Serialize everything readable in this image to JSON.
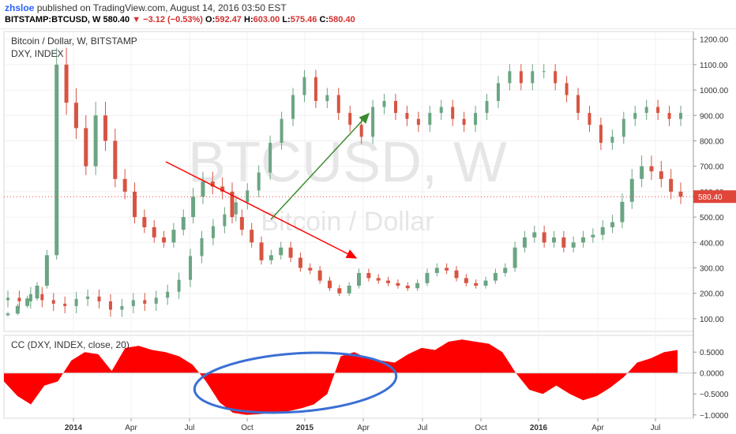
{
  "header": {
    "user": "zhsloe",
    "published_text": "published on TradingView.com, August 14, 2016 03:50 EST",
    "symbol": "BITSTAMP:BTCUSD, W",
    "last": "580.40",
    "change": "−3.12 (−0.53%)",
    "open_label": "O:",
    "open": "592.47",
    "high_label": "H:",
    "high": "603.00",
    "low_label": "L:",
    "low": "575.46",
    "close_label": "C:",
    "close": "580.40"
  },
  "price_pane": {
    "legend_main": "Bitcoin / Dollar, W, BITSTAMP",
    "legend_dxy": "DXY, INDEX",
    "watermark_big": "BTCUSD, W",
    "watermark_small": "Bitcoin / Dollar",
    "last_price_tag": "580.40"
  },
  "indicator_pane": {
    "legend": "CC (DXY, INDEX, close, 20)"
  },
  "colors": {
    "up": "#6ba583",
    "down": "#d75442",
    "cc_fill": "#ff0000",
    "arrow_red": "#ff0000",
    "arrow_green": "#3a8a2e",
    "ellipse": "#3b6fd4",
    "price_tag": "#e0453a"
  },
  "chart_data": [
    {
      "type": "candlestick",
      "series": [
        {
          "name": "BTCUSD",
          "values": [
            120,
            150,
            180,
            230,
            350,
            1100,
            950,
            850,
            700,
            900,
            800,
            650,
            600,
            500,
            460,
            420,
            400,
            450,
            500,
            580,
            640,
            620,
            600,
            500,
            450,
            400,
            330,
            350,
            380,
            340,
            300,
            290,
            250,
            220,
            200,
            230,
            280,
            260,
            250,
            240,
            230,
            220,
            240,
            280,
            300,
            290,
            260,
            240,
            230,
            250,
            280,
            300,
            380,
            420,
            440,
            400,
            420,
            380,
            400,
            420,
            430,
            460,
            480,
            560,
            650,
            700,
            680,
            650,
            600,
            580
          ]
        },
        {
          "name": "DXY",
          "values": [
            80.5,
            80.2,
            80.8,
            80.3,
            80.0,
            79.8,
            80.4,
            80.6,
            80.2,
            79.5,
            79.8,
            80.3,
            80.0,
            80.5,
            81.0,
            82.0,
            84.0,
            85.5,
            86.5,
            87.5,
            88.5,
            89.5,
            91.0,
            93.5,
            95.5,
            97.5,
            99.0,
            97.0,
            97.5,
            96.0,
            95.0,
            94.0,
            96.5,
            97.0,
            96.0,
            95.5,
            95.0,
            96.0,
            96.5,
            95.5,
            95.0,
            96.0,
            97.0,
            98.5,
            99.5,
            98.5,
            99.5,
            99.5,
            98.5,
            97.5,
            96.0,
            95.0,
            93.5,
            94.0,
            95.5,
            96.0,
            96.5,
            96.0,
            95.5,
            96.0
          ]
        }
      ],
      "yticks": [
        100,
        200,
        300,
        400,
        500,
        600,
        700,
        800,
        900,
        1000,
        1100,
        1200
      ],
      "ylim": [
        50,
        1230
      ],
      "xticks": [
        "2014",
        "Apr",
        "Jul",
        "Oct",
        "2015",
        "Apr",
        "Jul",
        "Oct",
        "2016",
        "Apr",
        "Jul"
      ]
    },
    {
      "type": "area",
      "title": "CC (DXY, INDEX, close, 20)",
      "x": [
        0,
        2,
        4,
        6,
        8,
        10,
        12,
        14,
        16,
        18,
        20,
        22,
        24,
        26,
        28,
        30,
        32,
        34,
        36,
        38,
        40,
        42,
        44,
        46,
        48,
        50,
        52,
        54,
        56,
        58,
        60,
        62,
        64,
        66,
        68,
        70,
        72,
        74,
        76,
        78,
        80,
        82,
        84,
        86,
        88,
        90,
        92,
        94,
        96,
        98,
        100
      ],
      "values": [
        -0.2,
        -0.55,
        -0.75,
        -0.3,
        -0.2,
        0.3,
        0.5,
        0.45,
        0.05,
        0.6,
        0.65,
        0.55,
        0.5,
        0.4,
        0.2,
        -0.2,
        -0.7,
        -0.95,
        -1.0,
        -0.98,
        -0.95,
        -0.92,
        -0.85,
        -0.75,
        -0.5,
        0.4,
        0.5,
        0.35,
        0.3,
        0.25,
        0.45,
        0.6,
        0.55,
        0.75,
        0.8,
        0.75,
        0.7,
        0.5,
        0.0,
        -0.4,
        -0.5,
        -0.3,
        -0.5,
        -0.65,
        -0.55,
        -0.35,
        -0.1,
        0.25,
        0.35,
        0.5,
        0.55
      ],
      "yticks": [
        0.5,
        0.0,
        -0.5,
        -1.0
      ],
      "ytick_labels": [
        "0.5000",
        "0.0000",
        "−0.5000",
        "−1.0000"
      ],
      "ylim": [
        -1.08,
        0.9
      ]
    }
  ]
}
